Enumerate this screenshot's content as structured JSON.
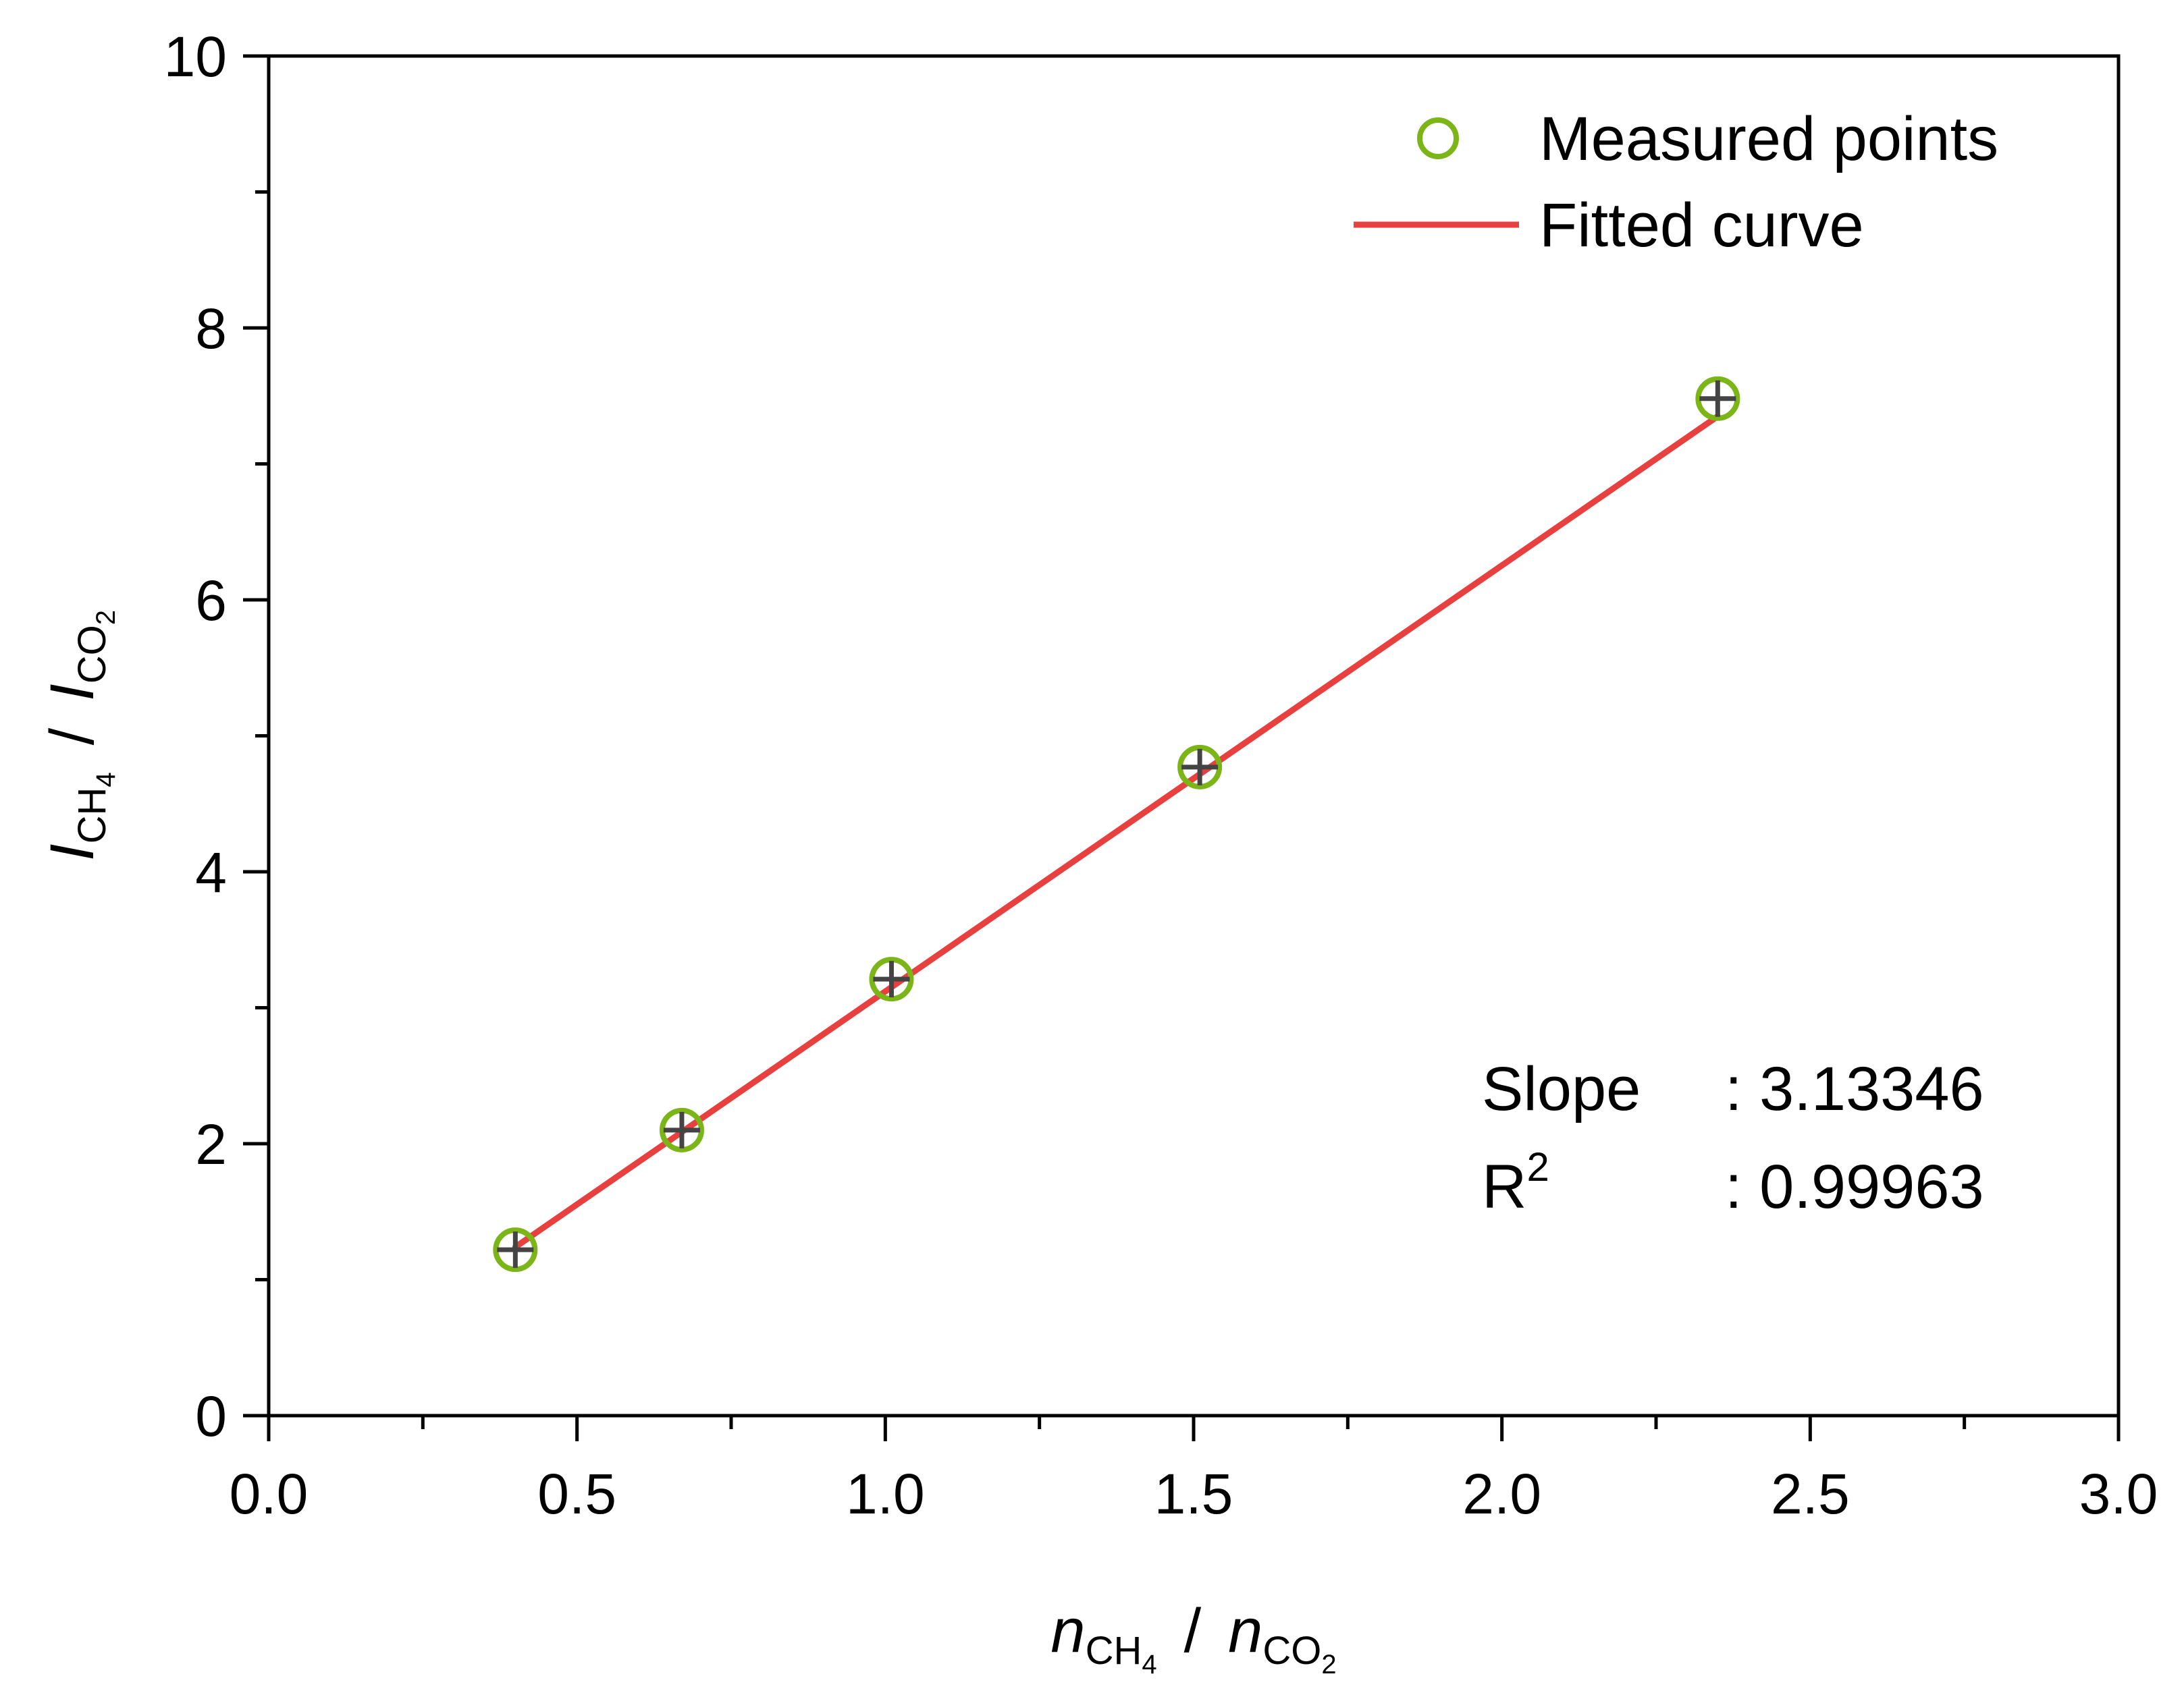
{
  "chart_data": {
    "type": "scatter",
    "title": "",
    "xlabel": {
      "var": "n",
      "num": "CH",
      "num_sub": "4",
      "sep": "/",
      "den": "CO",
      "den_sub": "2"
    },
    "ylabel": {
      "var": "I",
      "num": "CH",
      "num_sub": "4",
      "sep": "/",
      "den": "CO",
      "den_sub": "2"
    },
    "xlim": [
      0,
      3
    ],
    "ylim": [
      0,
      10
    ],
    "x_ticks": [
      0,
      0.5,
      1,
      1.5,
      2,
      2.5,
      3
    ],
    "x_tick_labels": [
      "0.0",
      "0.5",
      "1.0",
      "1.5",
      "2.0",
      "2.5",
      "3.0"
    ],
    "x_minor_step": 0.25,
    "y_ticks": [
      0,
      2,
      4,
      6,
      8,
      10
    ],
    "y_tick_labels": [
      "0",
      "2",
      "4",
      "6",
      "8",
      "10"
    ],
    "y_minor_step": 1,
    "grid": false,
    "legend_position": "top-right",
    "series": [
      {
        "name": "Measured points",
        "kind": "scatter",
        "marker": "open-circle",
        "color": "#7cb518",
        "error_color": "#444444",
        "x": [
          0.4,
          0.67,
          1.01,
          1.51,
          2.35
        ],
        "y": [
          1.22,
          2.1,
          3.21,
          4.77,
          7.48
        ]
      },
      {
        "name": "Fitted curve",
        "kind": "line",
        "color": "#e8403f",
        "x": [
          0.4,
          2.35
        ],
        "y": [
          1.24,
          7.35
        ]
      }
    ],
    "annotations": {
      "slope_label": "Slope",
      "slope_value": ": 3.13346",
      "r2_label_base": "R",
      "r2_label_sup": "2",
      "r2_value": ": 0.99963"
    }
  }
}
